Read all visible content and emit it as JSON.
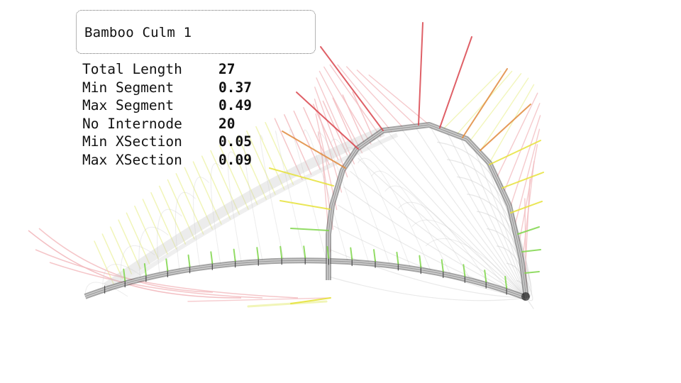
{
  "panel": {
    "title": "Bamboo Culm 1"
  },
  "stats": [
    {
      "label": "Total Length",
      "value": "27"
    },
    {
      "label": "Min Segment",
      "value": "0.37"
    },
    {
      "label": "Max Segment",
      "value": "0.49"
    },
    {
      "label": "No Internode",
      "value": "20"
    },
    {
      "label": "Min XSection",
      "value": "0.05"
    },
    {
      "label": "Max XSection",
      "value": "0.09"
    }
  ],
  "colors": {
    "culm_stroke": "#8a8a8a",
    "culm_outline": "#5a5a5a",
    "node_mark": "#3a3a3a",
    "vector_red": "#d9444c",
    "vector_orange": "#e08a3c",
    "vector_yellow": "#e6e23a",
    "vector_green": "#7fd64a",
    "vector_ghost_red": "#f2b8bc",
    "vector_ghost_yellow": "#eef3a6",
    "grid_line": "#c9c9c9"
  }
}
